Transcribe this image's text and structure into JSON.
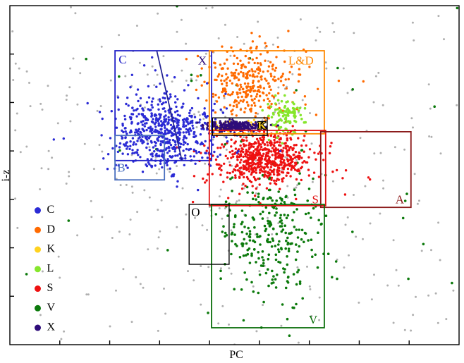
{
  "chart_data": {
    "type": "scatter",
    "title": "",
    "xlabel": "PC",
    "ylabel": "i-z",
    "axes": {
      "tick_labels_visible": false,
      "ticks": "bottom and left, unlabeled",
      "grid": false,
      "coord_system": "fraction of plot area, x right, y down"
    },
    "series": [
      {
        "name": "background",
        "color": "#b0b0b0",
        "size": 1.5,
        "clusters": [
          {
            "cx": 0.45,
            "cy": 0.4,
            "sx": 0.26,
            "sy": 0.24,
            "n": 220
          }
        ],
        "uniform_n": 140
      },
      {
        "name": "V",
        "color": "#0c7a0c",
        "size": 1.8,
        "clusters": [
          {
            "cx": 0.585,
            "cy": 0.67,
            "sx": 0.055,
            "sy": 0.1,
            "n": 290
          },
          {
            "cx": 0.6,
            "cy": 0.4,
            "sx": 0.22,
            "sy": 0.28,
            "n": 42
          }
        ],
        "uniform_n": 0
      },
      {
        "name": "S",
        "color": "#ee1111",
        "size": 1.7,
        "clusters": [
          {
            "cx": 0.565,
            "cy": 0.45,
            "sx": 0.045,
            "sy": 0.04,
            "n": 500
          },
          {
            "cx": 0.565,
            "cy": 0.46,
            "sx": 0.08,
            "sy": 0.055,
            "n": 110
          }
        ],
        "uniform_n": 0
      },
      {
        "name": "D",
        "color": "#ff6a00",
        "size": 1.7,
        "clusters": [
          {
            "cx": 0.53,
            "cy": 0.235,
            "sx": 0.042,
            "sy": 0.048,
            "n": 230
          },
          {
            "cx": 0.555,
            "cy": 0.2,
            "sx": 0.075,
            "sy": 0.06,
            "n": 85
          }
        ],
        "uniform_n": 0
      },
      {
        "name": "C",
        "color": "#2b2bd5",
        "size": 1.7,
        "clusters": [
          {
            "cx": 0.345,
            "cy": 0.37,
            "sx": 0.052,
            "sy": 0.055,
            "n": 500
          },
          {
            "cx": 0.33,
            "cy": 0.38,
            "sx": 0.085,
            "sy": 0.07,
            "n": 90
          }
        ],
        "uniform_n": 0
      },
      {
        "name": "L",
        "color": "#86e62c",
        "size": 1.8,
        "clusters": [
          {
            "cx": 0.618,
            "cy": 0.325,
            "sx": 0.02,
            "sy": 0.026,
            "n": 100
          }
        ],
        "uniform_n": 0
      },
      {
        "name": "K",
        "color": "#ffd21f",
        "size": 1.7,
        "clusters": [
          {
            "cx": 0.502,
            "cy": 0.358,
            "sx": 0.026,
            "sy": 0.009,
            "n": 85
          }
        ],
        "uniform_n": 0
      },
      {
        "name": "X",
        "color": "#2e0c7a",
        "size": 1.6,
        "clusters": [
          {
            "cx": 0.5,
            "cy": 0.355,
            "sx": 0.03,
            "sy": 0.0075,
            "n": 240
          }
        ],
        "uniform_n": 0
      }
    ],
    "regions": [
      {
        "label": "C",
        "stroke": "#2222c8",
        "x0": 0.234,
        "y0": 0.133,
        "x1": 0.449,
        "y1": 0.457
      },
      {
        "label": "B",
        "stroke": "#4a6fbf",
        "x0": 0.234,
        "y0": 0.383,
        "x1": 0.344,
        "y1": 0.514
      },
      {
        "label": "L&D",
        "stroke": "#ff8800",
        "x0": 0.444,
        "y0": 0.133,
        "x1": 0.7,
        "y1": 0.378
      },
      {
        "label": "S",
        "stroke": "#e01010",
        "x0": 0.444,
        "y0": 0.368,
        "x1": 0.703,
        "y1": 0.59
      },
      {
        "label": "A",
        "stroke": "#8b1a1a",
        "x0": 0.692,
        "y0": 0.372,
        "x1": 0.893,
        "y1": 0.595
      },
      {
        "label": "V",
        "stroke": "#0a6e0a",
        "x0": 0.449,
        "y0": 0.586,
        "x1": 0.7,
        "y1": 0.95
      },
      {
        "label": "O",
        "stroke": "#000000",
        "x0": 0.399,
        "y0": 0.586,
        "x1": 0.488,
        "y1": 0.763
      },
      {
        "label": "K",
        "stroke": "#000000",
        "x0": 0.451,
        "y0": 0.331,
        "x1": 0.573,
        "y1": 0.383
      }
    ],
    "region_labels": [
      {
        "text": "C",
        "color": "#2222c8",
        "x": 0.242,
        "y": 0.162,
        "anchor": "start"
      },
      {
        "text": "B",
        "color": "#4a6fbf",
        "x": 0.239,
        "y": 0.482,
        "anchor": "start"
      },
      {
        "text": "X",
        "color": "#2e0c7a",
        "x": 0.438,
        "y": 0.166,
        "anchor": "end"
      },
      {
        "text": "L&D",
        "color": "#ff8800",
        "x": 0.648,
        "y": 0.166,
        "anchor": "middle"
      },
      {
        "text": "K",
        "color": "#ffd21f",
        "x": 0.561,
        "y": 0.356,
        "anchor": "middle",
        "outline": "#000000",
        "bold": true,
        "size": 15
      },
      {
        "text": "S",
        "color": "#e01010",
        "x": 0.68,
        "y": 0.575,
        "anchor": "middle"
      },
      {
        "text": "A",
        "color": "#8b1a1a",
        "x": 0.868,
        "y": 0.575,
        "anchor": "middle"
      },
      {
        "text": "O",
        "color": "#000000",
        "x": 0.404,
        "y": 0.612,
        "anchor": "start"
      },
      {
        "text": "V",
        "color": "#0a6e0a",
        "x": 0.675,
        "y": 0.93,
        "anchor": "middle"
      }
    ],
    "lines": [
      {
        "x0": 0.327,
        "y0": 0.133,
        "x1": 0.383,
        "y1": 0.457,
        "color": "#202090"
      }
    ],
    "legend": {
      "position": "lower left",
      "x": 0.062,
      "y_start": 0.604,
      "y_step": 0.0577,
      "entries": [
        {
          "label": "C",
          "color": "#2b2bd5"
        },
        {
          "label": "D",
          "color": "#ff6a00"
        },
        {
          "label": "K",
          "color": "#ffd21f"
        },
        {
          "label": "L",
          "color": "#86e62c"
        },
        {
          "label": "S",
          "color": "#ee1111"
        },
        {
          "label": "V",
          "color": "#0c7a0c"
        },
        {
          "label": "X",
          "color": "#2e0c7a"
        }
      ]
    }
  }
}
